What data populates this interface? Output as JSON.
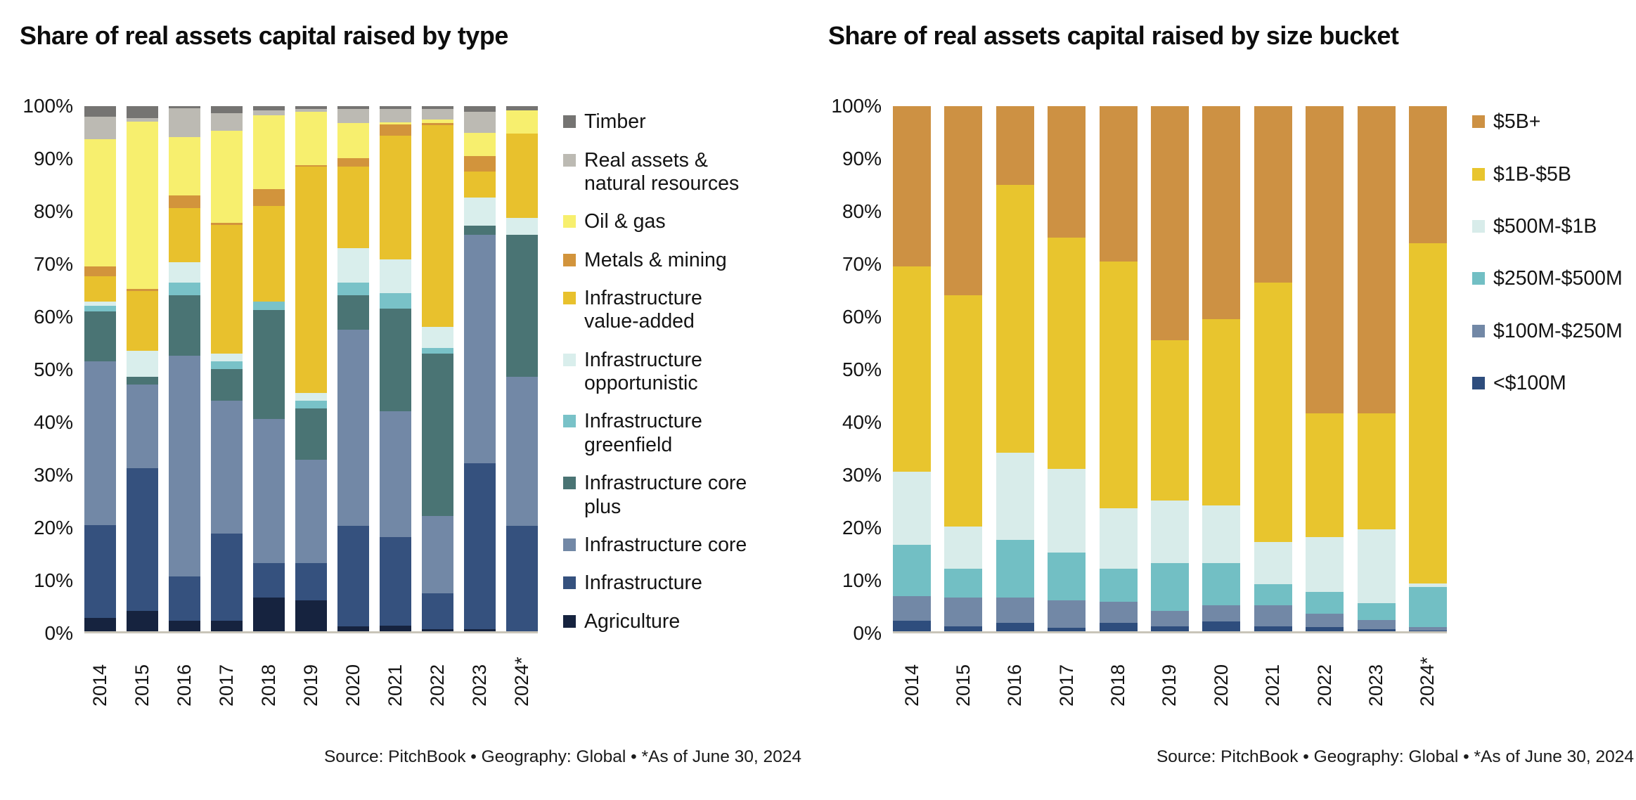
{
  "chart_data": [
    {
      "type": "bar",
      "variant": "stacked-100-percent",
      "title": "Share of real assets capital raised by type",
      "source": "Source: PitchBook  •  Geography: Global  •  *As of June 30, 2024",
      "categories": [
        "2014",
        "2015",
        "2016",
        "2017",
        "2018",
        "2019",
        "2020",
        "2021",
        "2022",
        "2023",
        "2024*"
      ],
      "y_ticks": [
        "100%",
        "90%",
        "80%",
        "70%",
        "60%",
        "50%",
        "40%",
        "30%",
        "20%",
        "10%",
        "0%"
      ],
      "ylim": [
        0,
        100
      ],
      "grid": false,
      "legend_position": "right",
      "series_order": "bottom-to-top",
      "legend_order": "top-of-stack-first",
      "series": [
        {
          "name": "Agriculture",
          "color": "#16233f",
          "values": [
            2.6,
            4.0,
            2.0,
            2.0,
            6.5,
            5.9,
            1.0,
            1.1,
            0.5,
            0.4,
            0
          ]
        },
        {
          "name": "Infrastructure",
          "color": "#35517e",
          "values": [
            17.7,
            27.1,
            8.5,
            16.6,
            6.6,
            7.1,
            19.2,
            16.9,
            6.8,
            31.6,
            20.2
          ]
        },
        {
          "name": "Infrastructure core",
          "color": "#7288a6",
          "values": [
            31.2,
            15.9,
            42.0,
            25.4,
            27.4,
            19.7,
            37.3,
            24.0,
            14.7,
            43.6,
            28.3
          ]
        },
        {
          "name": "Infrastructure core plus",
          "color": "#4a7474",
          "values": [
            9.5,
            1.5,
            11.5,
            6.0,
            20.7,
            9.8,
            6.5,
            19.5,
            31.0,
            1.7,
            27.0
          ]
        },
        {
          "name": "Infrastructure greenfield",
          "color": "#79c2c8",
          "values": [
            1.0,
            0,
            2.5,
            1.5,
            1.6,
            1.5,
            2.5,
            3.0,
            1.0,
            0,
            0
          ]
        },
        {
          "name": "Infrastructure opportunistic",
          "color": "#d9eeec",
          "values": [
            0.8,
            5.0,
            3.8,
            1.5,
            0,
            1.5,
            6.5,
            6.4,
            4.0,
            5.3,
            3.3
          ]
        },
        {
          "name": "Infrastructure value-added",
          "color": "#e8c12d",
          "values": [
            4.9,
            11.3,
            10.4,
            24.4,
            18.3,
            43.0,
            15.6,
            23.5,
            38.5,
            5.0,
            16.0
          ]
        },
        {
          "name": "Metals & mining",
          "color": "#d2943c",
          "values": [
            1.9,
            0.5,
            2.4,
            0.4,
            3.2,
            0.3,
            1.6,
            2.2,
            0.3,
            3.0,
            0
          ]
        },
        {
          "name": "Oil & gas",
          "color": "#f7ef6e",
          "values": [
            24.2,
            31.8,
            11.1,
            17.6,
            14.0,
            10.2,
            6.7,
            0.4,
            0.7,
            4.4,
            4.5
          ]
        },
        {
          "name": "Real assets & natural resources",
          "color": "#bcbab3",
          "values": [
            4.2,
            0.7,
            5.5,
            3.3,
            1.0,
            0.5,
            2.6,
            2.5,
            2.0,
            4.0,
            0
          ]
        },
        {
          "name": "Timber",
          "color": "#757472",
          "values": [
            2.0,
            2.2,
            0.3,
            1.3,
            0.7,
            0.5,
            0.5,
            0.5,
            0.5,
            1.0,
            0.7
          ]
        }
      ]
    },
    {
      "type": "bar",
      "variant": "stacked-100-percent",
      "title": "Share of real assets capital raised by size bucket",
      "source": "Source: PitchBook  •  Geography: Global  •  *As of June 30, 2024",
      "categories": [
        "2014",
        "2015",
        "2016",
        "2017",
        "2018",
        "2019",
        "2020",
        "2021",
        "2022",
        "2023",
        "2024*"
      ],
      "y_ticks": [
        "100%",
        "90%",
        "80%",
        "70%",
        "60%",
        "50%",
        "40%",
        "30%",
        "20%",
        "10%",
        "0%"
      ],
      "ylim": [
        0,
        100
      ],
      "grid": false,
      "legend_position": "right",
      "series_order": "bottom-to-top",
      "legend_order": "top-of-stack-first",
      "series": [
        {
          "name": "<$100M",
          "color": "#2e4d7d",
          "values": [
            2.0,
            1.0,
            1.7,
            0.7,
            1.7,
            1.0,
            1.9,
            1.0,
            0.9,
            0.4,
            0.2
          ]
        },
        {
          "name": "$100M-$250M",
          "color": "#7288a6",
          "values": [
            4.8,
            5.5,
            4.8,
            5.2,
            4.0,
            2.9,
            3.1,
            4.0,
            2.5,
            1.8,
            0.6
          ]
        },
        {
          "name": "$250M-$500M",
          "color": "#72bfc4",
          "values": [
            9.7,
            5.5,
            11.0,
            9.1,
            6.3,
            9.1,
            8.0,
            4.0,
            4.1,
            3.2,
            7.7
          ]
        },
        {
          "name": "$500M-$1B",
          "color": "#d8ecea",
          "values": [
            14.0,
            8.0,
            16.5,
            16.0,
            11.5,
            12.0,
            11.0,
            8.0,
            10.5,
            14.1,
            0.7
          ]
        },
        {
          "name": "$1B-$5B",
          "color": "#e8c52e",
          "values": [
            39.0,
            44.0,
            51.0,
            44.0,
            47.0,
            30.5,
            35.5,
            49.5,
            23.5,
            22.0,
            64.8
          ]
        },
        {
          "name": "$5B+",
          "color": "#cd9143",
          "values": [
            30.5,
            36.0,
            15.0,
            25.0,
            29.5,
            44.5,
            40.5,
            33.5,
            58.5,
            58.5,
            26.0
          ]
        }
      ]
    }
  ]
}
